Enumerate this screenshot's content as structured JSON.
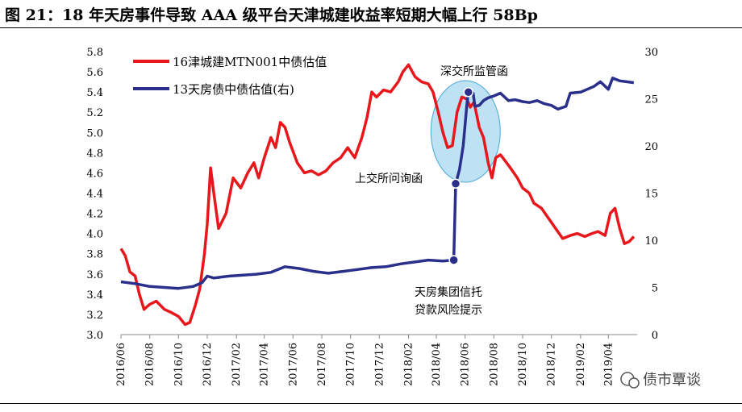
{
  "title": "图 21：18 年天房事件导致 AAA 级平台天津城建收益率短期大幅上行 58Bp",
  "watermark": "债市覃谈",
  "chart_data": {
    "type": "line",
    "x_ticks": [
      "2016/06",
      "2016/08",
      "2016/10",
      "2016/12",
      "2017/02",
      "2017/04",
      "2017/06",
      "2017/08",
      "2017/10",
      "2017/12",
      "2018/02",
      "2018/04",
      "2018/06",
      "2018/08",
      "2018/10",
      "2018/12",
      "2019/02",
      "2019/04"
    ],
    "y_left": {
      "min": 3.0,
      "max": 5.8,
      "ticks": [
        "3.0",
        "3.2",
        "3.4",
        "3.6",
        "3.8",
        "4.0",
        "4.2",
        "4.4",
        "4.6",
        "4.8",
        "5.0",
        "5.2",
        "5.4",
        "5.6",
        "5.8"
      ]
    },
    "y_right": {
      "min": 0,
      "max": 30,
      "ticks": [
        "0",
        "5",
        "10",
        "15",
        "20",
        "25",
        "30"
      ]
    },
    "legend_position": "top-left",
    "series": [
      {
        "name": "16津城建MTN001中债估值",
        "color": "#e8171c",
        "axis": "left",
        "points": [
          [
            "2016-06-01",
            3.85
          ],
          [
            "2016-06-10",
            3.78
          ],
          [
            "2016-06-20",
            3.62
          ],
          [
            "2016-07-01",
            3.58
          ],
          [
            "2016-07-10",
            3.4
          ],
          [
            "2016-07-20",
            3.25
          ],
          [
            "2016-08-01",
            3.3
          ],
          [
            "2016-08-15",
            3.33
          ],
          [
            "2016-09-01",
            3.25
          ],
          [
            "2016-09-15",
            3.22
          ],
          [
            "2016-10-01",
            3.18
          ],
          [
            "2016-10-15",
            3.1
          ],
          [
            "2016-10-25",
            3.12
          ],
          [
            "2016-11-05",
            3.28
          ],
          [
            "2016-11-15",
            3.45
          ],
          [
            "2016-11-25",
            3.8
          ],
          [
            "2016-12-01",
            4.1
          ],
          [
            "2016-12-08",
            4.65
          ],
          [
            "2016-12-15",
            4.4
          ],
          [
            "2016-12-25",
            4.05
          ],
          [
            "2017-01-10",
            4.2
          ],
          [
            "2017-01-25",
            4.55
          ],
          [
            "2017-02-10",
            4.45
          ],
          [
            "2017-02-25",
            4.6
          ],
          [
            "2017-03-10",
            4.7
          ],
          [
            "2017-03-20",
            4.55
          ],
          [
            "2017-04-01",
            4.75
          ],
          [
            "2017-04-15",
            4.95
          ],
          [
            "2017-04-25",
            4.85
          ],
          [
            "2017-05-05",
            5.1
          ],
          [
            "2017-05-15",
            5.05
          ],
          [
            "2017-05-25",
            4.9
          ],
          [
            "2017-06-10",
            4.7
          ],
          [
            "2017-06-25",
            4.6
          ],
          [
            "2017-07-10",
            4.62
          ],
          [
            "2017-07-25",
            4.58
          ],
          [
            "2017-08-10",
            4.62
          ],
          [
            "2017-08-25",
            4.7
          ],
          [
            "2017-09-10",
            4.75
          ],
          [
            "2017-09-25",
            4.85
          ],
          [
            "2017-10-10",
            4.75
          ],
          [
            "2017-10-25",
            4.95
          ],
          [
            "2017-11-05",
            5.15
          ],
          [
            "2017-11-15",
            5.4
          ],
          [
            "2017-11-25",
            5.35
          ],
          [
            "2017-12-10",
            5.42
          ],
          [
            "2017-12-25",
            5.4
          ],
          [
            "2018-01-10",
            5.5
          ],
          [
            "2018-01-20",
            5.6
          ],
          [
            "2018-02-01",
            5.67
          ],
          [
            "2018-02-15",
            5.55
          ],
          [
            "2018-03-01",
            5.5
          ],
          [
            "2018-03-15",
            5.48
          ],
          [
            "2018-03-25",
            5.4
          ],
          [
            "2018-04-05",
            5.2
          ],
          [
            "2018-04-15",
            5.0
          ],
          [
            "2018-04-25",
            4.85
          ],
          [
            "2018-05-05",
            4.87
          ],
          [
            "2018-05-15",
            5.2
          ],
          [
            "2018-05-25",
            5.35
          ],
          [
            "2018-06-05",
            5.33
          ],
          [
            "2018-06-12",
            5.25
          ],
          [
            "2018-06-20",
            5.3
          ],
          [
            "2018-07-01",
            5.05
          ],
          [
            "2018-07-10",
            4.95
          ],
          [
            "2018-07-20",
            4.7
          ],
          [
            "2018-07-28",
            4.55
          ],
          [
            "2018-08-05",
            4.75
          ],
          [
            "2018-08-15",
            4.78
          ],
          [
            "2018-08-25",
            4.72
          ],
          [
            "2018-09-05",
            4.65
          ],
          [
            "2018-09-20",
            4.55
          ],
          [
            "2018-10-01",
            4.45
          ],
          [
            "2018-10-15",
            4.4
          ],
          [
            "2018-10-25",
            4.3
          ],
          [
            "2018-11-10",
            4.25
          ],
          [
            "2018-11-25",
            4.15
          ],
          [
            "2018-12-10",
            4.05
          ],
          [
            "2018-12-25",
            3.95
          ],
          [
            "2019-01-10",
            3.98
          ],
          [
            "2019-01-25",
            4.0
          ],
          [
            "2019-02-10",
            3.97
          ],
          [
            "2019-02-25",
            4.0
          ],
          [
            "2019-03-10",
            4.02
          ],
          [
            "2019-03-25",
            3.98
          ],
          [
            "2019-04-05",
            4.2
          ],
          [
            "2019-04-15",
            4.25
          ],
          [
            "2019-04-25",
            4.05
          ],
          [
            "2019-05-05",
            3.9
          ],
          [
            "2019-05-15",
            3.92
          ],
          [
            "2019-05-25",
            3.97
          ]
        ]
      },
      {
        "name": "13天房债中债估值(右)",
        "color": "#2b2f8c",
        "axis": "right",
        "points": [
          [
            "2016-06-01",
            5.6
          ],
          [
            "2016-07-01",
            5.4
          ],
          [
            "2016-08-01",
            5.1
          ],
          [
            "2016-09-01",
            5.0
          ],
          [
            "2016-10-01",
            4.9
          ],
          [
            "2016-11-01",
            5.1
          ],
          [
            "2016-11-20",
            5.5
          ],
          [
            "2016-12-01",
            6.2
          ],
          [
            "2016-12-15",
            6.0
          ],
          [
            "2017-01-15",
            6.2
          ],
          [
            "2017-02-15",
            6.3
          ],
          [
            "2017-03-15",
            6.4
          ],
          [
            "2017-04-15",
            6.6
          ],
          [
            "2017-05-15",
            7.2
          ],
          [
            "2017-06-15",
            7.0
          ],
          [
            "2017-07-15",
            6.7
          ],
          [
            "2017-08-15",
            6.5
          ],
          [
            "2017-09-15",
            6.7
          ],
          [
            "2017-10-15",
            6.9
          ],
          [
            "2017-11-15",
            7.1
          ],
          [
            "2017-12-15",
            7.2
          ],
          [
            "2018-01-15",
            7.5
          ],
          [
            "2018-02-15",
            7.7
          ],
          [
            "2018-03-15",
            7.9
          ],
          [
            "2018-04-15",
            7.8
          ],
          [
            "2018-05-08",
            7.9
          ],
          [
            "2018-05-12",
            16.0
          ],
          [
            "2018-05-20",
            17.5
          ],
          [
            "2018-05-28",
            20.0
          ],
          [
            "2018-06-05",
            24.5
          ],
          [
            "2018-06-08",
            25.7
          ],
          [
            "2018-06-18",
            25.6
          ],
          [
            "2018-06-22",
            24.2
          ],
          [
            "2018-07-01",
            24.3
          ],
          [
            "2018-07-10",
            24.8
          ],
          [
            "2018-07-20",
            25.1
          ],
          [
            "2018-08-01",
            25.3
          ],
          [
            "2018-08-15",
            25.6
          ],
          [
            "2018-09-01",
            24.8
          ],
          [
            "2018-09-15",
            24.9
          ],
          [
            "2018-10-01",
            24.7
          ],
          [
            "2018-10-15",
            24.6
          ],
          [
            "2018-11-01",
            24.8
          ],
          [
            "2018-11-15",
            24.5
          ],
          [
            "2018-12-01",
            24.3
          ],
          [
            "2018-12-15",
            23.9
          ],
          [
            "2019-01-01",
            24.2
          ],
          [
            "2019-01-10",
            25.6
          ],
          [
            "2019-02-01",
            25.7
          ],
          [
            "2019-02-15",
            26.0
          ],
          [
            "2019-03-01",
            26.3
          ],
          [
            "2019-03-15",
            26.8
          ],
          [
            "2019-04-01",
            26.0
          ],
          [
            "2019-04-10",
            27.2
          ],
          [
            "2019-04-25",
            26.9
          ],
          [
            "2019-05-10",
            26.8
          ],
          [
            "2019-05-25",
            26.7
          ]
        ]
      }
    ],
    "annotations": [
      {
        "text": "深交所监管函"
      },
      {
        "text": "上交所问询函"
      },
      {
        "text_lines": [
          "天房集团信托",
          "贷款风险提示"
        ]
      }
    ],
    "markers": [
      {
        "date": "2018-05-08",
        "value": 7.9
      },
      {
        "date": "2018-05-12",
        "value": 16.0
      },
      {
        "date": "2018-06-08",
        "value": 25.7
      }
    ]
  }
}
